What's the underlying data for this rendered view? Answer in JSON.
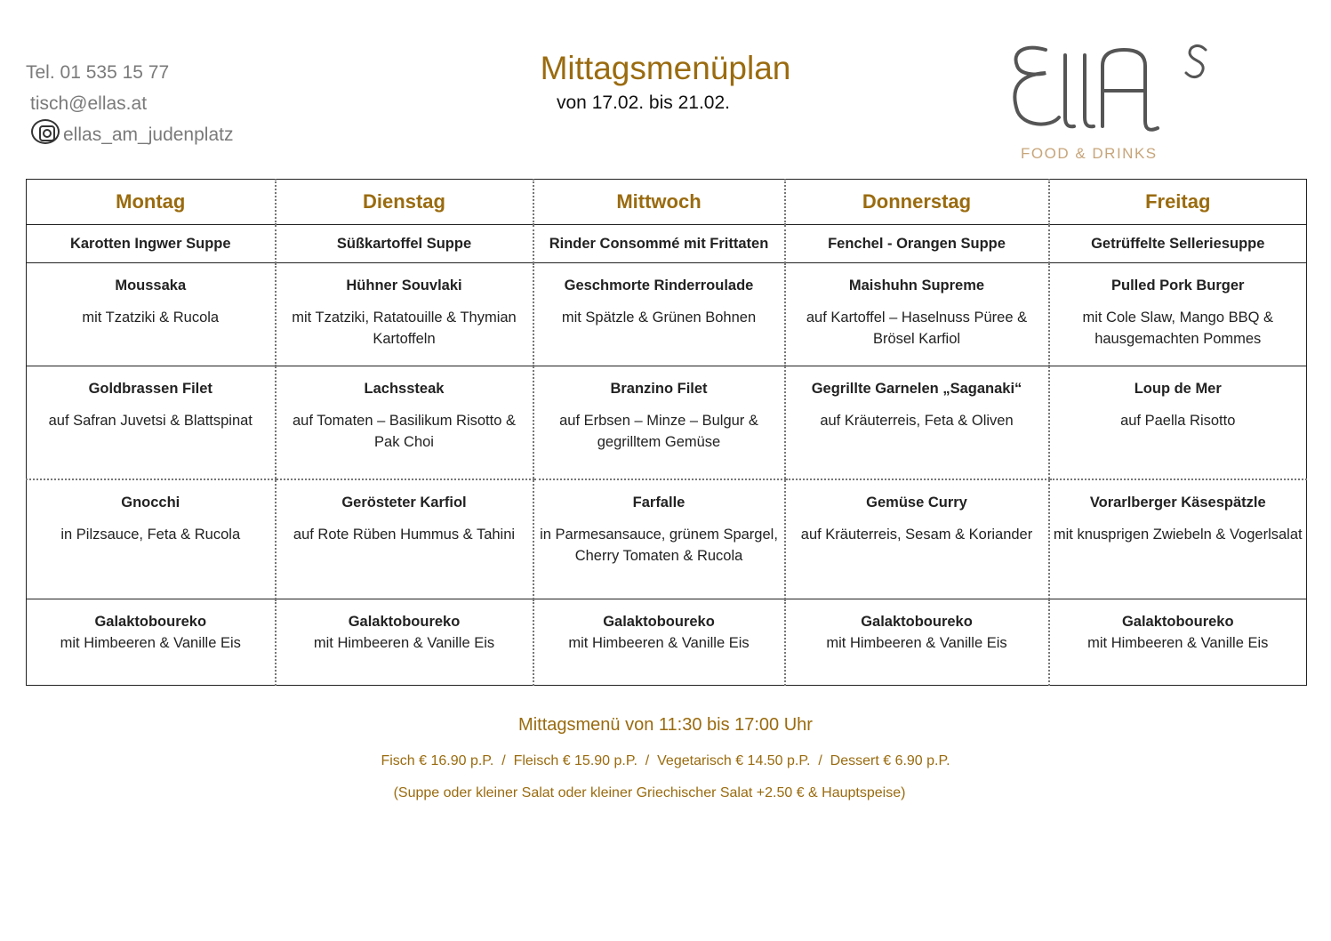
{
  "contact": {
    "phone": "Tel.  01 535 15 77",
    "email": "tisch@ellas.at",
    "instagram": "ellas_am_judenplatz"
  },
  "header": {
    "title": "Mittagsmenüplan",
    "subtitle": "von 17.02. bis 21.02."
  },
  "logo": {
    "name": "ELLAS",
    "tagline": "FOOD & DRINKS"
  },
  "colors": {
    "accent": "#9a6b0f",
    "contact_text": "#7a7a7a"
  },
  "days": [
    "Montag",
    "Dienstag",
    "Mittwoch",
    "Donnerstag",
    "Freitag"
  ],
  "soups": [
    "Karotten Ingwer Suppe",
    "Süßkartoffel Suppe",
    "Rinder Consommé mit Frittaten",
    "Fenchel - Orangen Suppe",
    "Getrüffelte Selleriesuppe"
  ],
  "rows": [
    [
      {
        "name": "Moussaka",
        "desc": "mit Tzatziki & Rucola"
      },
      {
        "name": "Hühner Souvlaki",
        "desc": "mit Tzatziki, Ratatouille & Thymian Kartoffeln"
      },
      {
        "name": "Geschmorte Rinderroulade",
        "desc": "mit Spätzle & Grünen Bohnen"
      },
      {
        "name": "Maishuhn Supreme",
        "desc": "auf Kartoffel – Haselnuss Püree & Brösel Karfiol"
      },
      {
        "name": "Pulled Pork Burger",
        "desc": "mit Cole Slaw, Mango BBQ & hausgemachten Pommes"
      }
    ],
    [
      {
        "name": "Goldbrassen Filet",
        "desc": "auf Safran Juvetsi & Blattspinat"
      },
      {
        "name": "Lachssteak",
        "desc": "auf Tomaten – Basilikum Risotto & Pak Choi"
      },
      {
        "name": "Branzino Filet",
        "desc": "auf Erbsen – Minze – Bulgur & gegrilltem Gemüse"
      },
      {
        "name": "Gegrillte Garnelen „Saganaki“",
        "desc": "auf Kräuterreis, Feta & Oliven"
      },
      {
        "name": "Loup de Mer",
        "desc": "auf Paella Risotto"
      }
    ],
    [
      {
        "name": "Gnocchi",
        "desc": "in Pilzsauce, Feta & Rucola"
      },
      {
        "name": "Gerösteter Karfiol",
        "desc": "auf Rote Rüben Hummus & Tahini"
      },
      {
        "name": "Farfalle",
        "desc": "in Parmesansauce, grünem Spargel, Cherry Tomaten & Rucola"
      },
      {
        "name": "Gemüse Curry",
        "desc": "auf Kräuterreis, Sesam & Koriander"
      },
      {
        "name": "Vorarlberger Käsespätzle",
        "desc": "mit knusprigen Zwiebeln & Vogerlsalat"
      }
    ]
  ],
  "desserts": [
    {
      "name": "Galaktoboureko",
      "desc": "mit Himbeeren & Vanille Eis"
    },
    {
      "name": "Galaktoboureko",
      "desc": "mit Himbeeren & Vanille Eis"
    },
    {
      "name": "Galaktoboureko",
      "desc": "mit Himbeeren & Vanille Eis"
    },
    {
      "name": "Galaktoboureko",
      "desc": "mit Himbeeren & Vanille Eis"
    },
    {
      "name": "Galaktoboureko",
      "desc": "mit Himbeeren & Vanille Eis"
    }
  ],
  "footer": {
    "hours": "Mittagsmenü von 11:30 bis 17:00 Uhr",
    "prices": "Fisch € 16.90 p.P.  /  Fleisch € 15.90 p.P.  /  Vegetarisch € 14.50 p.P.  /  Dessert € 6.90 p.P.",
    "note": "(Suppe oder kleiner Salat oder kleiner Griechischer Salat +2.50 € & Hauptspeise)"
  }
}
